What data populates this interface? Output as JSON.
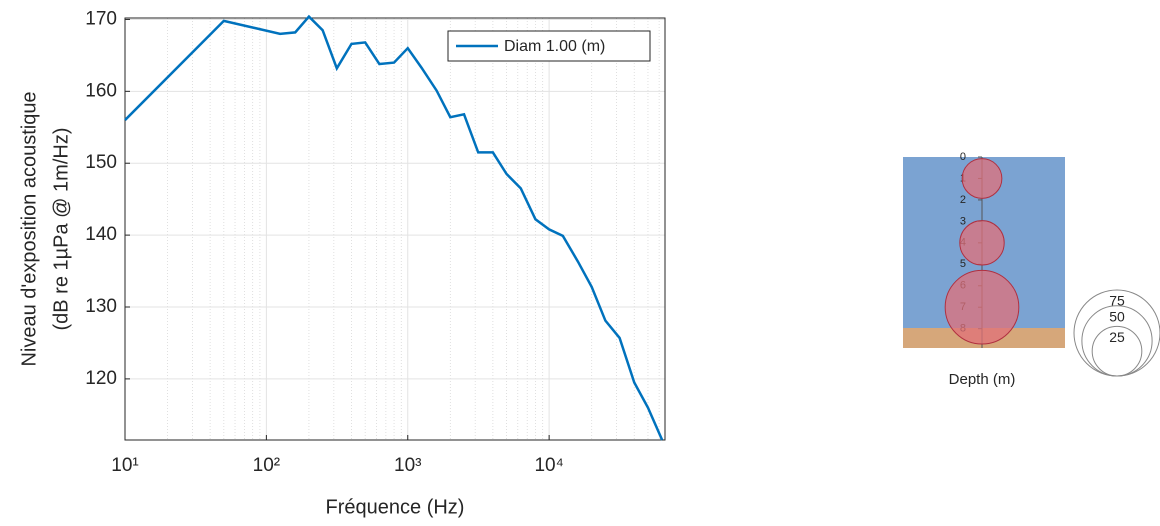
{
  "chart_data": [
    {
      "type": "line",
      "xlabel": "Fréquence (Hz)",
      "ylabel": [
        "Niveau d'exposition acoustique",
        "(dB re 1µPa @ 1m/Hz)"
      ],
      "x": [
        10,
        50,
        125,
        160,
        200,
        250,
        315,
        400,
        500,
        630,
        800,
        1000,
        1250,
        1600,
        2000,
        2500,
        3150,
        4000,
        5000,
        6300,
        8000,
        10000,
        12500,
        16000,
        20000,
        25000,
        31500,
        40000,
        50000,
        63000
      ],
      "series": [
        {
          "name": "Diam 1.00 (m)",
          "color": "#0072bd",
          "values": [
            156,
            169.8,
            168,
            168.2,
            170.4,
            168.5,
            163.2,
            166.6,
            166.8,
            163.8,
            164,
            166,
            163.3,
            160.1,
            156.4,
            156.8,
            151.5,
            151.5,
            148.5,
            146.5,
            142.2,
            140.8,
            139.9,
            136.3,
            132.8,
            128.1,
            125.7,
            119.5,
            116,
            111.5
          ]
        }
      ],
      "xlim": [
        10,
        66000
      ],
      "xscale": "log",
      "xticks": [
        {
          "value": 10,
          "label": "10¹"
        },
        {
          "value": 100,
          "label": "10²"
        },
        {
          "value": 1000,
          "label": "10³"
        },
        {
          "value": 10000,
          "label": "10⁴"
        }
      ],
      "ylim": [
        111.5,
        170.2
      ],
      "yticks": [
        120,
        130,
        140,
        150,
        160,
        170
      ],
      "grid": true,
      "legend": "top-right"
    },
    {
      "type": "bubble",
      "xlabel": "Depth (m)",
      "values": [
        1,
        4,
        7
      ],
      "sizes": [
        16,
        20,
        55
      ],
      "color": "#e0707a",
      "ylim": [
        0,
        8.9
      ],
      "yticks": [
        0,
        1,
        2,
        3,
        4,
        5,
        6,
        7,
        8
      ],
      "size_legend": [
        75,
        50,
        25
      ]
    }
  ]
}
